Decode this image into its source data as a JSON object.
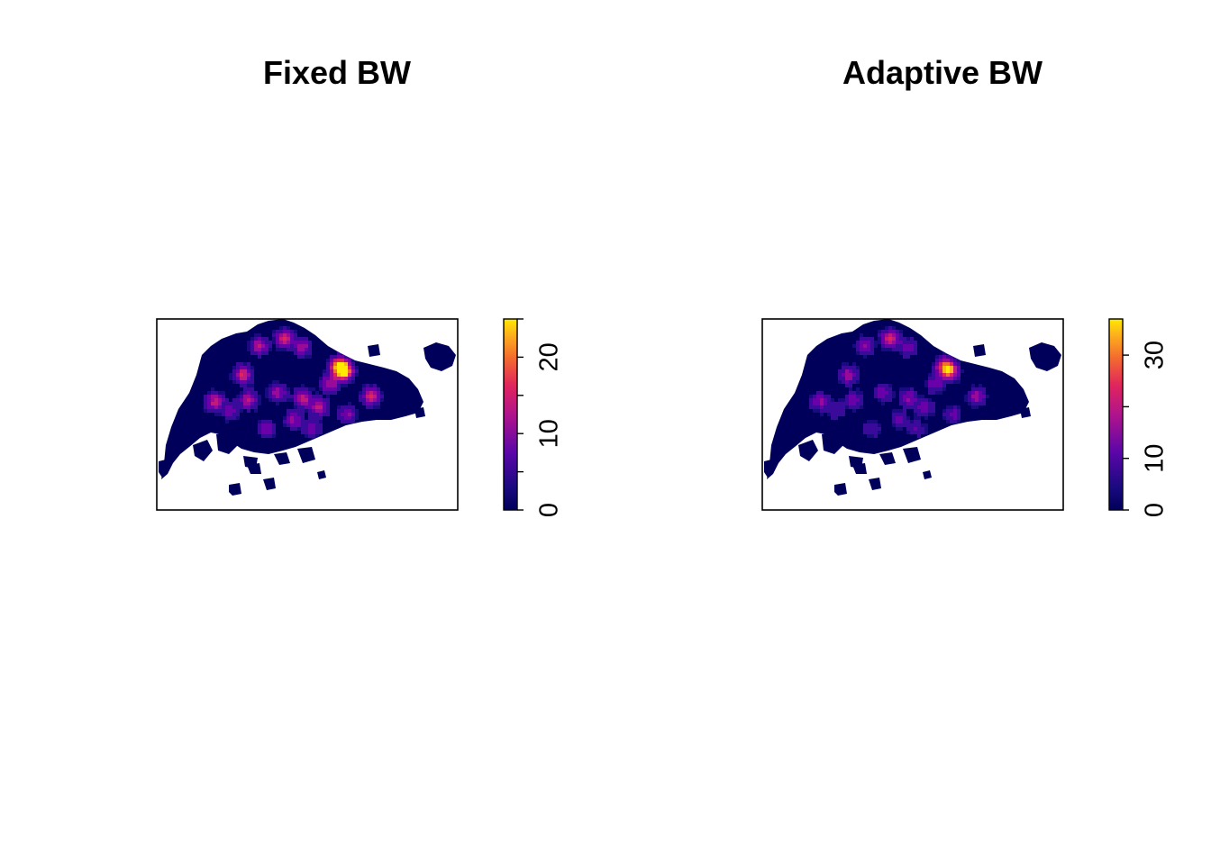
{
  "figure": {
    "panels": [
      {
        "title": "Fixed BW",
        "legend_ticks": [
          "0",
          "10",
          "20"
        ]
      },
      {
        "title": "Adaptive BW",
        "legend_ticks": [
          "0",
          "10",
          "30"
        ]
      }
    ]
  },
  "chart_data": [
    {
      "type": "heatmap",
      "title": "Fixed BW",
      "xlabel": "",
      "ylabel": "",
      "colorbar": {
        "range": [
          0,
          25
        ],
        "ticks": [
          0,
          5,
          10,
          15,
          20,
          25
        ],
        "tick_labels": [
          "0",
          "10",
          "20"
        ],
        "palette": [
          "#00005a",
          "#2b0a8c",
          "#6a00a8",
          "#b0148c",
          "#e0245e",
          "#f46d2e",
          "#fdb21c",
          "#ffea00"
        ]
      },
      "hotspots_max": 25,
      "axes": "none",
      "grid": false
    },
    {
      "type": "heatmap",
      "title": "Adaptive BW",
      "xlabel": "",
      "ylabel": "",
      "colorbar": {
        "range": [
          0,
          37
        ],
        "ticks": [
          0,
          10,
          20,
          30
        ],
        "tick_labels": [
          "0",
          "10",
          "30"
        ],
        "palette": [
          "#00005a",
          "#2b0a8c",
          "#6a00a8",
          "#b0148c",
          "#e0245e",
          "#f46d2e",
          "#fdb21c",
          "#ffea00"
        ]
      },
      "hotspots_max": 37,
      "axes": "none",
      "grid": false
    }
  ]
}
